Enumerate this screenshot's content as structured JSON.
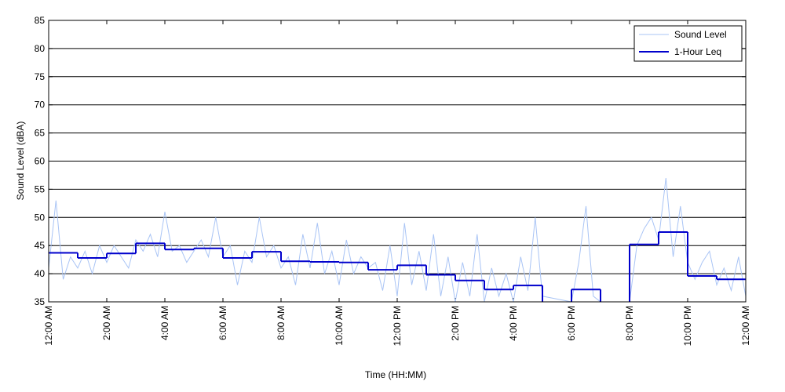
{
  "chart_data": {
    "type": "line",
    "xlabel": "Time (HH:MM)",
    "ylabel": "Sound Level (dBA)",
    "ylim": [
      35,
      85
    ],
    "yticks": [
      "35",
      "40",
      "45",
      "50",
      "55",
      "60",
      "65",
      "70",
      "75",
      "80",
      "85"
    ],
    "xlim_hours": [
      0,
      24
    ],
    "xtick_labels": [
      "12:00 AM",
      "2:00 AM",
      "4:00 AM",
      "6:00 AM",
      "8:00 AM",
      "10:00 AM",
      "12:00 PM",
      "2:00 PM",
      "4:00 PM",
      "6:00 PM",
      "8:00 PM",
      "10:00 PM",
      "12:00 AM"
    ],
    "grid": "horizontal",
    "legend_position": "top-right",
    "colors": {
      "sound_level": "#a9c4f5",
      "leq": "#0000cc"
    },
    "series": [
      {
        "name": "Sound Level",
        "style": "thin light-blue line",
        "hours": [
          0.0,
          0.25,
          0.5,
          0.75,
          1.0,
          1.25,
          1.5,
          1.75,
          2.0,
          2.25,
          2.5,
          2.75,
          3.0,
          3.25,
          3.5,
          3.75,
          4.0,
          4.25,
          4.5,
          4.75,
          5.0,
          5.25,
          5.5,
          5.75,
          6.0,
          6.25,
          6.5,
          6.75,
          7.0,
          7.25,
          7.5,
          7.75,
          8.0,
          8.25,
          8.5,
          8.75,
          9.0,
          9.25,
          9.5,
          9.75,
          10.0,
          10.25,
          10.5,
          10.75,
          11.0,
          11.25,
          11.5,
          11.75,
          12.0,
          12.25,
          12.5,
          12.75,
          13.0,
          13.25,
          13.5,
          13.75,
          14.0,
          14.25,
          14.5,
          14.75,
          15.0,
          15.25,
          15.5,
          15.75,
          16.0,
          16.25,
          16.5,
          16.75,
          17.0,
          18.0,
          18.25,
          18.5,
          18.75,
          19.0,
          20.0,
          20.25,
          20.5,
          20.75,
          21.0,
          21.25,
          21.5,
          21.75,
          22.0,
          22.25,
          22.5,
          22.75,
          23.0,
          23.25,
          23.5,
          23.75,
          24.0
        ],
        "values": [
          41,
          53,
          39,
          43,
          41,
          44,
          40,
          45,
          42,
          45,
          43,
          41,
          46,
          44,
          47,
          43,
          51,
          44,
          45,
          42,
          44,
          46,
          43,
          50,
          43,
          45,
          38,
          44,
          42,
          50,
          43,
          45,
          41,
          43,
          38,
          47,
          41,
          49,
          40,
          44,
          38,
          46,
          40,
          43,
          41,
          42,
          37,
          45,
          36,
          49,
          38,
          44,
          37,
          47,
          36,
          43,
          35,
          42,
          36,
          47,
          35,
          41,
          36,
          40,
          35,
          43,
          37,
          50,
          36,
          35,
          42,
          52,
          36,
          35,
          35,
          45,
          48,
          50,
          46,
          57,
          43,
          52,
          42,
          39,
          42,
          44,
          38,
          41,
          37,
          43,
          36
        ]
      },
      {
        "name": "1-Hour Leq",
        "style": "thick dark-blue step line",
        "segments": [
          {
            "start": 0,
            "end": 1,
            "value": 43.7
          },
          {
            "start": 1,
            "end": 2,
            "value": 42.8
          },
          {
            "start": 2,
            "end": 3,
            "value": 43.6
          },
          {
            "start": 3,
            "end": 4,
            "value": 45.4
          },
          {
            "start": 4,
            "end": 5,
            "value": 44.3
          },
          {
            "start": 5,
            "end": 6,
            "value": 44.5
          },
          {
            "start": 6,
            "end": 7,
            "value": 42.8
          },
          {
            "start": 7,
            "end": 8,
            "value": 43.9
          },
          {
            "start": 8,
            "end": 9,
            "value": 42.2
          },
          {
            "start": 9,
            "end": 10,
            "value": 42.1
          },
          {
            "start": 10,
            "end": 11,
            "value": 42.0
          },
          {
            "start": 11,
            "end": 12,
            "value": 40.7
          },
          {
            "start": 12,
            "end": 13,
            "value": 41.5
          },
          {
            "start": 13,
            "end": 14,
            "value": 39.8
          },
          {
            "start": 14,
            "end": 15,
            "value": 38.8
          },
          {
            "start": 15,
            "end": 16,
            "value": 37.2
          },
          {
            "start": 16,
            "end": 17,
            "value": 37.9
          },
          {
            "start": 17,
            "end": 18,
            "value": null
          },
          {
            "start": 18,
            "end": 19,
            "value": 37.2
          },
          {
            "start": 19,
            "end": 20,
            "value": null
          },
          {
            "start": 20,
            "end": 21,
            "value": 45.2
          },
          {
            "start": 21,
            "end": 22,
            "value": 47.4
          },
          {
            "start": 22,
            "end": 23,
            "value": 39.6
          },
          {
            "start": 23,
            "end": 24,
            "value": 39.0
          }
        ]
      }
    ]
  }
}
